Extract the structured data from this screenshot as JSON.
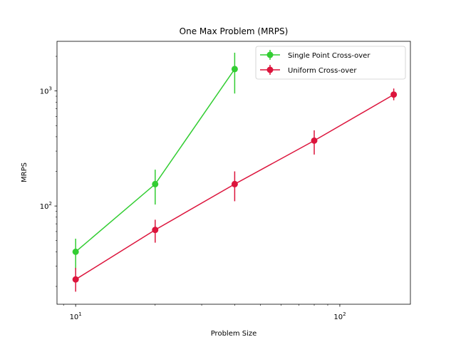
{
  "chart_data": {
    "type": "line",
    "title": "One Max Problem (MRPS)",
    "xlabel": "Problem Size",
    "ylabel": "MRPS",
    "xscale": "log",
    "yscale": "log",
    "xlim": [
      8.5,
      185
    ],
    "ylim": [
      14,
      2700
    ],
    "x_ticks": [
      {
        "value": 10,
        "base": "10",
        "exp": "1"
      },
      {
        "value": 100,
        "base": "10",
        "exp": "2"
      }
    ],
    "y_ticks": [
      {
        "value": 100,
        "base": "10",
        "exp": "2"
      },
      {
        "value": 1000,
        "base": "10",
        "exp": "3"
      }
    ],
    "grid": false,
    "legend_position": "top-right",
    "series": [
      {
        "name": "Single Point Cross-over",
        "color": "#32cd32",
        "x": [
          10,
          20,
          40
        ],
        "y": [
          40,
          155,
          1550
        ],
        "y_low": [
          28,
          103,
          950
        ],
        "y_high": [
          52,
          207,
          2150
        ]
      },
      {
        "name": "Uniform Cross-over",
        "color": "#dc143c",
        "x": [
          10,
          20,
          40,
          80,
          160
        ],
        "y": [
          23,
          62,
          155,
          370,
          930
        ],
        "y_low": [
          18,
          48,
          110,
          280,
          830
        ],
        "y_high": [
          29,
          76,
          200,
          455,
          1050
        ]
      }
    ]
  }
}
